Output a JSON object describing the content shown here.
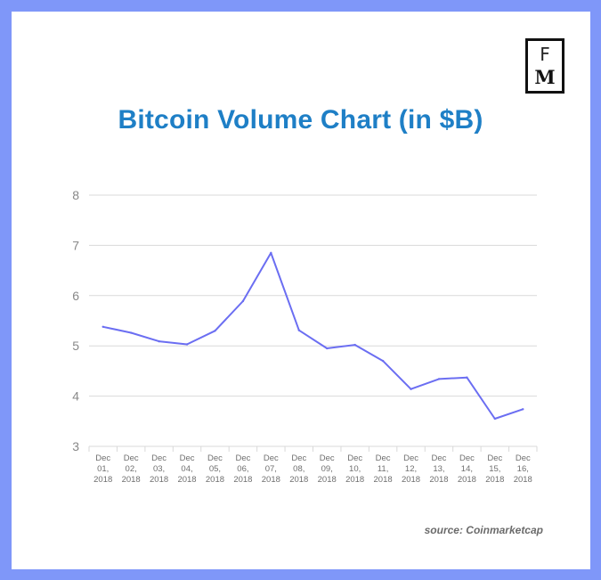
{
  "logo": {
    "line1": "F",
    "line2": "M"
  },
  "source": "source: Coinmarketcap",
  "colors": {
    "border": "#7f97f9",
    "title": "#1e7fc6",
    "line": "#6b6ef2",
    "grid": "#d9d9d9",
    "tick": "#888888"
  },
  "chart_data": {
    "type": "line",
    "title": "Bitcoin Volume Chart (in $B)",
    "xlabel": "",
    "ylabel": "",
    "ylim": [
      3,
      8
    ],
    "yticks": [
      3,
      4,
      5,
      6,
      7,
      8
    ],
    "grid": true,
    "categories": [
      [
        "Dec",
        "01,",
        "2018"
      ],
      [
        "Dec",
        "02,",
        "2018"
      ],
      [
        "Dec",
        "03,",
        "2018"
      ],
      [
        "Dec",
        "04,",
        "2018"
      ],
      [
        "Dec",
        "05,",
        "2018"
      ],
      [
        "Dec",
        "06,",
        "2018"
      ],
      [
        "Dec",
        "07,",
        "2018"
      ],
      [
        "Dec",
        "08,",
        "2018"
      ],
      [
        "Dec",
        "09,",
        "2018"
      ],
      [
        "Dec",
        "10,",
        "2018"
      ],
      [
        "Dec",
        "11,",
        "2018"
      ],
      [
        "Dec",
        "12,",
        "2018"
      ],
      [
        "Dec",
        "13,",
        "2018"
      ],
      [
        "Dec",
        "14,",
        "2018"
      ],
      [
        "Dec",
        "15,",
        "2018"
      ],
      [
        "Dec",
        "16,",
        "2018"
      ]
    ],
    "series": [
      {
        "name": "Bitcoin Volume",
        "values": [
          5.38,
          5.26,
          5.09,
          5.03,
          5.3,
          5.89,
          6.85,
          5.31,
          4.95,
          5.02,
          4.7,
          4.14,
          4.34,
          4.37,
          3.55,
          3.74
        ]
      }
    ]
  }
}
